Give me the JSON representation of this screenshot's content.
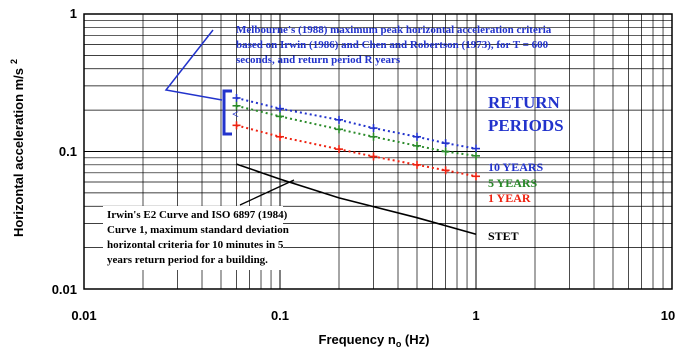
{
  "chart_data": {
    "type": "line",
    "xscale": "log",
    "yscale": "log",
    "xlim": [
      0.01,
      10
    ],
    "ylim": [
      0.01,
      1
    ],
    "grid": true,
    "xlabel": "Frequency n",
    "xlabel_sub": "o",
    "xlabel_unit": " (Hz)",
    "ylabel": "Horizontal acceleration m/s",
    "ylabel_sup": "2",
    "x_ticks": [
      {
        "value": 0.01,
        "label": "0.01"
      },
      {
        "value": 0.1,
        "label": "0.1"
      },
      {
        "value": 1,
        "label": "1"
      },
      {
        "value": 10,
        "label": "10"
      }
    ],
    "y_ticks": [
      {
        "value": 0.01,
        "label": "0.01"
      },
      {
        "value": 0.1,
        "label": "0.1"
      },
      {
        "value": 1,
        "label": "1"
      }
    ],
    "series": [
      {
        "name": "10 YEARS",
        "color": "#2233cc",
        "x": [
          0.06,
          0.1,
          0.2,
          0.3,
          0.5,
          0.7,
          1.0
        ],
        "y": [
          0.245,
          0.205,
          0.17,
          0.148,
          0.128,
          0.115,
          0.105
        ]
      },
      {
        "name": "5 YEARS",
        "color": "#2a8a2a",
        "x": [
          0.06,
          0.1,
          0.2,
          0.3,
          0.5,
          0.7,
          1.0
        ],
        "y": [
          0.215,
          0.18,
          0.145,
          0.128,
          0.11,
          0.1,
          0.093
        ]
      },
      {
        "name": "1 YEAR",
        "color": "#ee2211",
        "x": [
          0.06,
          0.1,
          0.2,
          0.3,
          0.5,
          0.7,
          1.0
        ],
        "y": [
          0.155,
          0.128,
          0.104,
          0.092,
          0.08,
          0.073,
          0.066
        ]
      },
      {
        "name": "STET",
        "color": "#000000",
        "x": [
          0.06,
          0.1,
          0.2,
          0.5,
          1.0
        ],
        "y": [
          0.081,
          0.063,
          0.046,
          0.033,
          0.025
        ]
      }
    ],
    "annotations": {
      "return_periods_heading": [
        "RETURN",
        "PERIODS"
      ],
      "melbourne_note": [
        "Melbourne's (1988) maximum peak horizontal acceleration criteria",
        "based on Irwin (1986) and Chen and Robertson (1973), for T = 600",
        "seconds, and return period R years"
      ],
      "irwin_note": [
        "Irwin's E2 Curve and ISO 6897 (1984)",
        "Curve 1, maximum standard deviation",
        "horizontal criteria for 10 minutes in 5",
        "years return period for a building."
      ],
      "bracket_symbol": "<"
    },
    "colors": {
      "blue": "#2233cc",
      "green": "#2a8a2a",
      "red": "#ee2211",
      "grid": "#000000"
    }
  }
}
